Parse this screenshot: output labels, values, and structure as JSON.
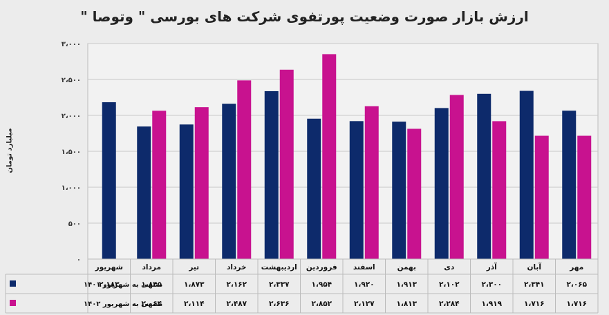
{
  "chart_data": {
    "type": "bar",
    "title": "ارزش بازار صورت وضعیت پورتفوی شرکت های بورسی \" وتوصا \"",
    "ylabel": "میلیارد تومان",
    "xlabel": "",
    "ylim": [
      0,
      3000
    ],
    "y_ticks": [
      0,
      500,
      1000,
      1500,
      2000,
      2500,
      3000
    ],
    "y_tick_labels": [
      "0",
      "500",
      "1,000",
      "1,500",
      "2,000",
      "2,500",
      "3,000"
    ],
    "grid": true,
    "legend": "table-left",
    "categories": [
      "شهریور",
      "مرداد",
      "تیر",
      "خرداد",
      "اردیبهشت",
      "فروردین",
      "اسفند",
      "بهمن",
      "دی",
      "آذر",
      "آبان",
      "مهر"
    ],
    "series": [
      {
        "name": "منتهی به شهریور 1401",
        "color": "#0d2a6b",
        "values": [
          2183,
          1845,
          1873,
          2162,
          2337,
          1954,
          1920,
          1913,
          2102,
          2300,
          2341,
          2065
        ],
        "labels": [
          "2,183",
          "1,845",
          "1,873",
          "2,162",
          "2,337",
          "1,954",
          "1,920",
          "1,913",
          "2,102",
          "2,300",
          "2,341",
          "2,065"
        ]
      },
      {
        "name": "منتهی به شهریور 1402",
        "color": "#c8128f",
        "values": [
          null,
          2064,
          2114,
          2487,
          2636,
          2852,
          2127,
          1813,
          2284,
          1919,
          1716,
          1716
        ],
        "labels": [
          "",
          "2,064",
          "2,114",
          "2,487",
          "2,636",
          "2,852",
          "2,127",
          "1,813",
          "2,284",
          "1,919",
          "1,716",
          "1,716"
        ]
      }
    ]
  }
}
